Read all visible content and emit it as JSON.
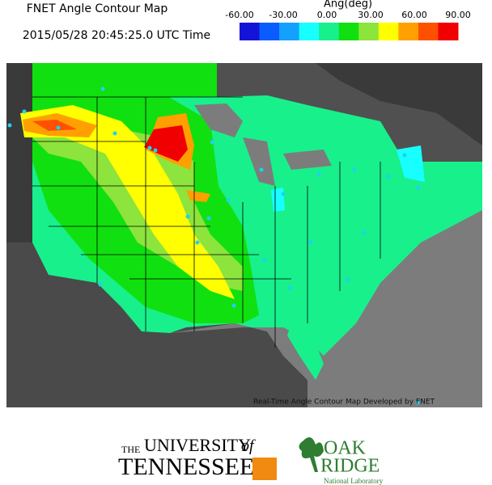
{
  "header": {
    "title": "FNET Angle Contour Map",
    "timestamp": "2015/05/28 20:45:25.0 UTC Time"
  },
  "legend": {
    "label": "Ang(deg)",
    "range": [
      -60,
      90
    ],
    "ticks": [
      {
        "value": -60,
        "label": "-60.00"
      },
      {
        "value": -30,
        "label": "-30.00"
      },
      {
        "value": 0,
        "label": "0.00"
      },
      {
        "value": 30,
        "label": "30.00"
      },
      {
        "value": 60,
        "label": "60.00"
      },
      {
        "value": 90,
        "label": "90.00"
      }
    ],
    "colors": [
      "#1414d8",
      "#0a5cff",
      "#14a0ff",
      "#18ffff",
      "#18f08c",
      "#10e010",
      "#8ce43c",
      "#ffff00",
      "#ffa000",
      "#ff5000",
      "#f00000"
    ]
  },
  "map": {
    "credit": "Real-Time Angle Contour Map Developed by FNET"
  },
  "footer": {
    "ut_small": "THE",
    "ut_university": "UNIVERSITY",
    "ut_of": "of",
    "ut_tennessee": "TENNESSEE",
    "ornl_oak": "OAK",
    "ornl_ridge": "RIDGE",
    "ornl_lab": "National Laboratory"
  }
}
